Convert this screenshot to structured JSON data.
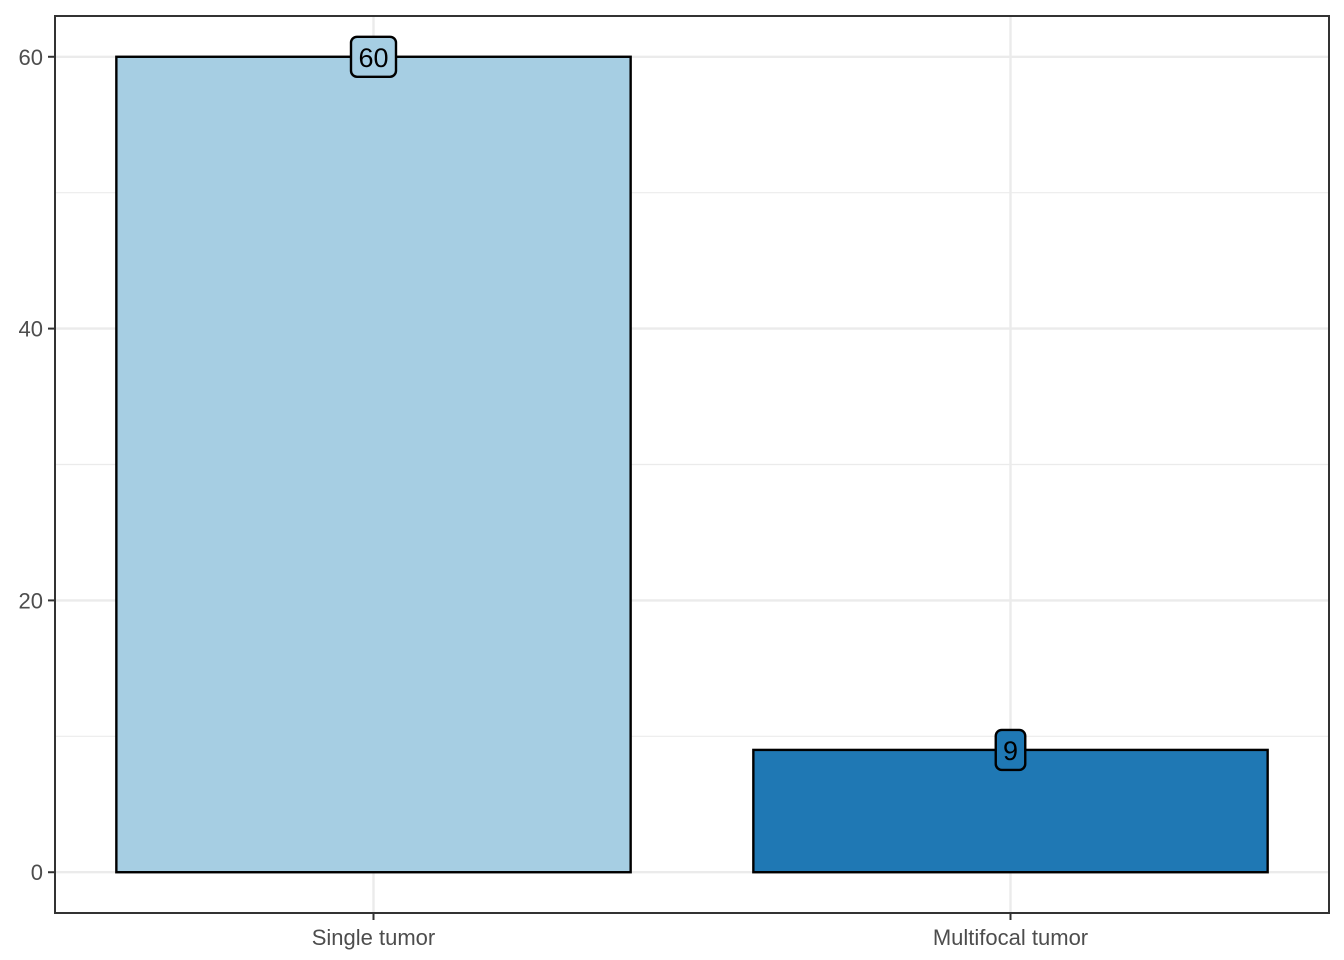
{
  "chart_data": {
    "type": "bar",
    "title": "",
    "xlabel": "",
    "ylabel": "",
    "categories": [
      "Single tumor",
      "Multifocal tumor"
    ],
    "values": [
      60,
      9
    ],
    "data_labels": [
      "60",
      "9"
    ],
    "bar_colors": [
      "#a6cee3",
      "#1f78b4"
    ],
    "yticks": [
      0,
      20,
      40,
      60
    ],
    "ytick_labels": [
      "0",
      "20",
      "40",
      "60"
    ],
    "ylim": [
      -3,
      63
    ],
    "grid": true,
    "legend": "none",
    "background": "#ffffff",
    "grid_color": "#ebebeb",
    "border_color": "#333333",
    "bar_outline_color": "#000000"
  }
}
